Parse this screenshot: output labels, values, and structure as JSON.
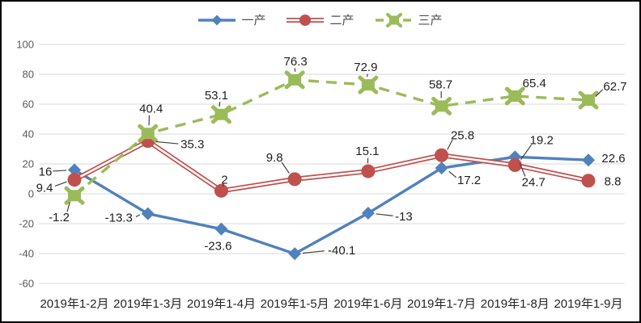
{
  "chart_data": {
    "type": "line",
    "title": "",
    "categories": [
      "2019年1-2月",
      "2019年1-3月",
      "2019年1-4月",
      "2019年1-5月",
      "2019年1-6月",
      "2019年1-7月",
      "2019年1-8月",
      "2019年1-9月"
    ],
    "series": [
      {
        "name": "一产",
        "color": "#4f81bd",
        "marker": "diamond",
        "line": "solid",
        "values": [
          16,
          -13.3,
          -23.6,
          -40.1,
          -13,
          17.2,
          24.7,
          22.6
        ],
        "labels": [
          "16",
          "-13.3",
          "-23.6",
          "-40.1",
          "-13",
          "17.2",
          "24.7",
          "22.6"
        ],
        "label_offsets": [
          [
            -36,
            2
          ],
          [
            -36,
            5
          ],
          [
            -4,
            21
          ],
          [
            58,
            -4
          ],
          [
            44,
            4
          ],
          [
            34,
            15
          ],
          [
            23,
            31
          ],
          [
            31,
            -2
          ]
        ],
        "leaders": [
          true,
          true,
          false,
          true,
          true,
          true,
          true,
          false
        ]
      },
      {
        "name": "二产",
        "color": "#c0504d",
        "marker": "circle",
        "line": "double",
        "values": [
          9.4,
          35.3,
          2,
          9.8,
          15.1,
          25.8,
          19.2,
          8.8
        ],
        "labels": [
          "9.4",
          "35.3",
          "2",
          "9.8",
          "15.1",
          "25.8",
          "19.2",
          "8.8"
        ],
        "label_offsets": [
          [
            -37,
            10
          ],
          [
            55,
            4
          ],
          [
            4,
            -14
          ],
          [
            -25,
            -27
          ],
          [
            -1,
            -25
          ],
          [
            26,
            -25
          ],
          [
            33,
            -31
          ],
          [
            30,
            1
          ]
        ],
        "leaders": [
          true,
          true,
          true,
          true,
          true,
          true,
          true,
          false
        ]
      },
      {
        "name": "三产",
        "color": "#9bbb59",
        "marker": "x-square",
        "line": "dashed",
        "values": [
          -1.2,
          40.4,
          53.1,
          76.3,
          72.9,
          58.7,
          65.4,
          62.7
        ],
        "labels": [
          "-1.2",
          "40.4",
          "53.1",
          "76.3",
          "72.9",
          "58.7",
          "65.4",
          "62.7"
        ],
        "label_offsets": [
          [
            -19,
            27
          ],
          [
            4,
            -31
          ],
          [
            -6,
            -24
          ],
          [
            1,
            -23
          ],
          [
            -3,
            -22
          ],
          [
            -1,
            -27
          ],
          [
            24,
            -16
          ],
          [
            33,
            -17
          ]
        ],
        "leaders": [
          true,
          true,
          true,
          true,
          true,
          true,
          false,
          true
        ]
      }
    ],
    "y_axis": {
      "min": -60,
      "max": 100,
      "step": 20,
      "ticks": [
        "100",
        "80",
        "60",
        "40",
        "20",
        "0",
        "-20",
        "-40",
        "-60"
      ]
    },
    "xlabel": "",
    "ylabel": "",
    "ylim": [
      -60,
      100
    ],
    "grid": true,
    "grid_color": "#d9d9d9",
    "legend_position": "top",
    "leader_line_color": "#404040",
    "axis_tick_color": "#595959",
    "category_label_color": "#262626",
    "data_label_color": "#1f1f1f"
  }
}
